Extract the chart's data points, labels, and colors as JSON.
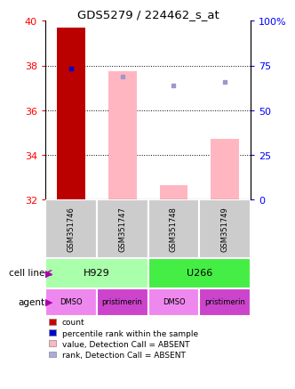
{
  "title": "GDS5279 / 224462_s_at",
  "samples": [
    "GSM351746",
    "GSM351747",
    "GSM351748",
    "GSM351749"
  ],
  "ylim_left": [
    32,
    40
  ],
  "ylim_right": [
    0,
    100
  ],
  "yticks_left": [
    32,
    34,
    36,
    38,
    40
  ],
  "yticks_right": [
    0,
    25,
    50,
    75,
    100
  ],
  "ytick_labels_right": [
    "0",
    "25",
    "50",
    "75",
    "100%"
  ],
  "bar_present_values": [
    39.7,
    null,
    null,
    null
  ],
  "absent_bar_values": [
    null,
    37.75,
    32.65,
    34.7
  ],
  "rank_present": [
    37.85,
    null,
    null,
    null
  ],
  "rank_absent": [
    null,
    37.5,
    37.1,
    37.25
  ],
  "rank_color_present": "#0000cc",
  "rank_color_absent": "#9999cc",
  "cell_line_groups": [
    {
      "label": "H929",
      "cols": [
        0,
        1
      ],
      "color": "#aaffaa"
    },
    {
      "label": "U266",
      "cols": [
        2,
        3
      ],
      "color": "#44ee44"
    }
  ],
  "agent_groups": [
    {
      "label": "DMSO",
      "col": 0,
      "color": "#ee88ee"
    },
    {
      "label": "pristimerin",
      "col": 1,
      "color": "#cc44cc"
    },
    {
      "label": "DMSO",
      "col": 2,
      "color": "#ee88ee"
    },
    {
      "label": "pristimerin",
      "col": 3,
      "color": "#cc44cc"
    }
  ],
  "legend_items": [
    {
      "label": "count",
      "color": "#cc0000"
    },
    {
      "label": "percentile rank within the sample",
      "color": "#0000cc"
    },
    {
      "label": "value, Detection Call = ABSENT",
      "color": "#ffb6c1"
    },
    {
      "label": "rank, Detection Call = ABSENT",
      "color": "#aaaadd"
    }
  ],
  "cell_line_label": "cell line",
  "agent_label": "agent",
  "sample_box_color": "#cccccc",
  "grid_color": "#000000",
  "bar_width": 0.55
}
